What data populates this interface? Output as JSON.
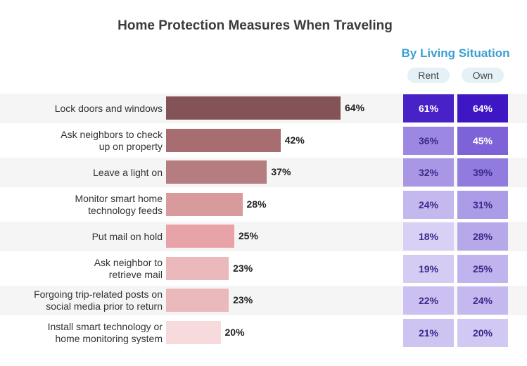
{
  "title": "Home Protection Measures When Traveling",
  "subtitle": "By Living Situation",
  "columns": [
    "Rent",
    "Own"
  ],
  "colors": {
    "title": "#3c3c3c",
    "subtitle": "#3a9fd0",
    "row_band": "#f5f5f5",
    "header_pill": "#e4f2f8"
  },
  "chart_data": {
    "type": "bar",
    "orientation": "horizontal",
    "title": "Home Protection Measures When Traveling",
    "categories": [
      "Lock doors and windows",
      "Ask neighbors to check up on property",
      "Leave a light on",
      "Monitor smart home technology feeds",
      "Put mail on hold",
      "Ask neighbor to retrieve mail",
      "Forgoing trip-related posts on social media prior to return",
      "Install smart technology or home monitoring system"
    ],
    "label_lines": [
      [
        "Lock doors and windows"
      ],
      [
        "Ask neighbors to check",
        "up on property"
      ],
      [
        "Leave a light on"
      ],
      [
        "Monitor smart home",
        "technology feeds"
      ],
      [
        "Put mail on hold"
      ],
      [
        "Ask neighbor to",
        "retrieve mail"
      ],
      [
        "Forgoing trip-related posts on",
        "social media prior to return"
      ],
      [
        "Install smart technology or",
        "home monitoring system"
      ]
    ],
    "values": [
      64,
      42,
      37,
      28,
      25,
      23,
      23,
      20
    ],
    "value_labels": [
      "64%",
      "42%",
      "37%",
      "28%",
      "25%",
      "23%",
      "23%",
      "20%"
    ],
    "bar_colors": [
      "#845358",
      "#a86d71",
      "#b57d80",
      "#d99a9e",
      "#e8a3a8",
      "#ebb8bb",
      "#ebb8bb",
      "#f7dadb"
    ],
    "ylim": [
      0,
      64
    ],
    "series": [
      {
        "name": "Rent",
        "values": [
          61,
          36,
          32,
          24,
          18,
          19,
          22,
          21
        ],
        "labels": [
          "61%",
          "36%",
          "32%",
          "24%",
          "18%",
          "19%",
          "22%",
          "21%"
        ]
      },
      {
        "name": "Own",
        "values": [
          64,
          45,
          39,
          31,
          28,
          25,
          24,
          20
        ],
        "labels": [
          "64%",
          "45%",
          "39%",
          "31%",
          "28%",
          "25%",
          "24%",
          "20%"
        ]
      }
    ]
  }
}
